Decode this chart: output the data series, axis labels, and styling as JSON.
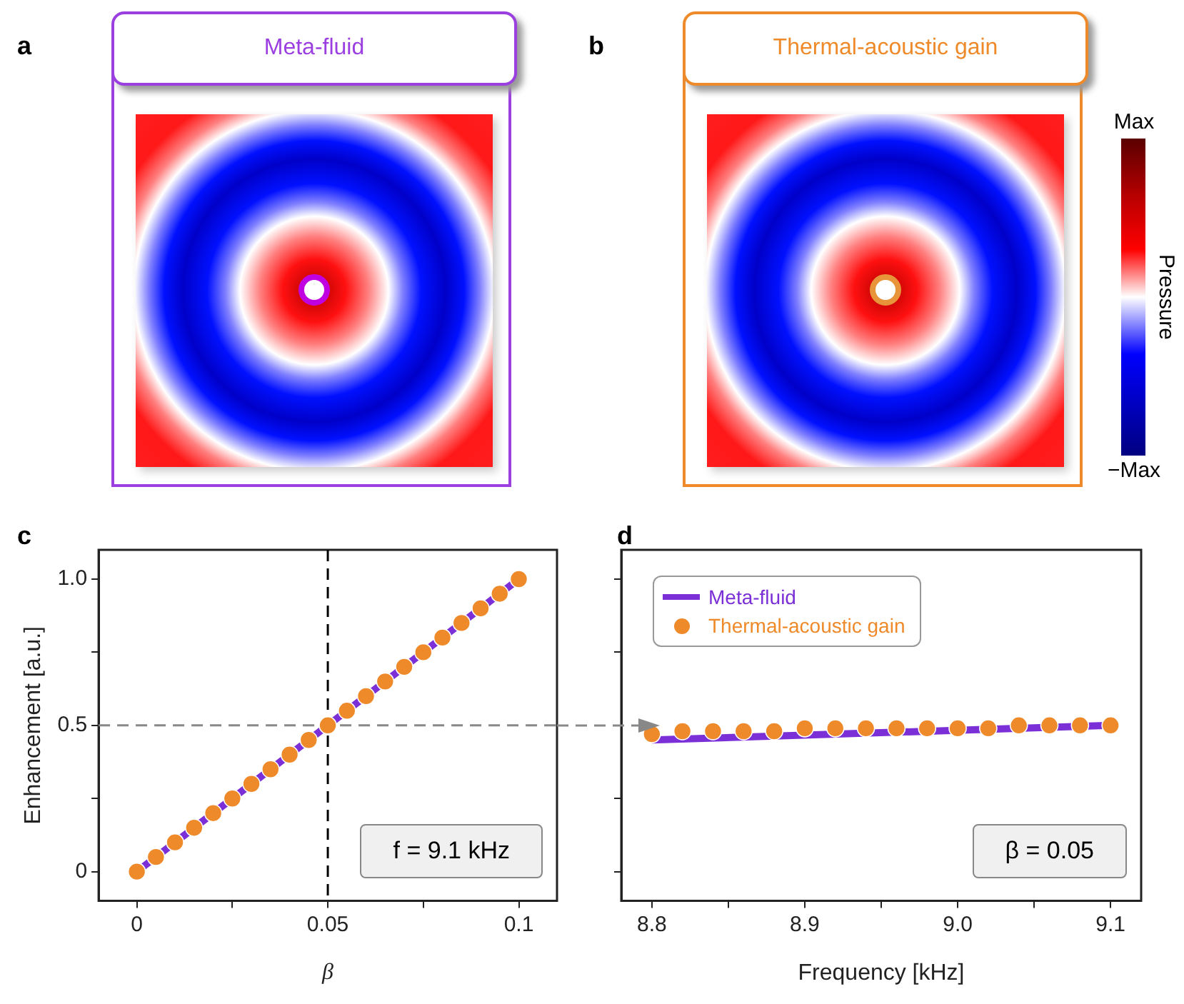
{
  "chart_data": [
    {
      "type": "other",
      "title": "Meta-fluid",
      "annotations": [
        "a"
      ]
    },
    {
      "type": "other",
      "title": "Thermal-acoustic gain",
      "annotations": [
        "b",
        "Max",
        "−Max"
      ],
      "clabel": "Pressure"
    },
    {
      "type": "line",
      "xlabel": "β",
      "ylabel": "Enhancement [a.u.]",
      "annotations": [
        "c",
        "f = 9.1 kHz"
      ],
      "xlim": [
        -0.01,
        0.11
      ],
      "xticks": [
        0,
        {
          "value": 0.025,
          "label": null
        },
        0.05,
        {
          "value": 0.075,
          "label": null
        },
        0.1
      ],
      "ylim": [
        -0.1,
        1.1
      ],
      "yticks": [
        0,
        {
          "value": 0.25,
          "label": null
        },
        0.5,
        {
          "value": 0.75,
          "label": null
        },
        {
          "value": 1,
          "label": "1.0"
        }
      ],
      "grid": false,
      "legend": false,
      "ref_lines": [
        {
          "axis": "x",
          "value": 0.05,
          "color": "#000000",
          "line_style": "dashed"
        },
        {
          "axis": "y",
          "value": 0.5,
          "color": "#888888",
          "line_style": "dashed"
        }
      ],
      "series": [
        {
          "type": "line",
          "color": "#7b2fd6",
          "marker": "none",
          "line_style": "solid",
          "x": [
            0,
            0.1
          ],
          "values": [
            0,
            1
          ]
        },
        {
          "type": "scatter",
          "color": "#ee8a2a",
          "marker": "circle",
          "x": [
            0,
            0.005,
            0.01,
            0.015,
            0.02,
            0.025,
            0.03,
            0.035,
            0.04,
            0.045,
            0.05,
            0.055,
            0.06,
            0.065,
            0.07,
            0.075,
            0.08,
            0.085,
            0.09,
            0.095,
            0.1
          ],
          "values": [
            0,
            0.05,
            0.1,
            0.15,
            0.2,
            0.25,
            0.3,
            0.35,
            0.4,
            0.45,
            0.5,
            0.55,
            0.6,
            0.65,
            0.7,
            0.75,
            0.8,
            0.85,
            0.9,
            0.95,
            1
          ]
        }
      ]
    },
    {
      "type": "line",
      "xlabel": "Frequency [kHz]",
      "annotations": [
        "d",
        "β = 0.05"
      ],
      "xlim": [
        8.78,
        9.12
      ],
      "xticks": [
        8.8,
        {
          "value": 8.85,
          "label": null
        },
        8.9,
        {
          "value": 8.95,
          "label": null
        },
        {
          "value": 9,
          "label": "9.0"
        },
        {
          "value": 9.05,
          "label": null
        },
        9.1
      ],
      "ylim": [
        -0.1,
        1.1
      ],
      "yticks": [
        {
          "value": 0,
          "label": null
        },
        {
          "value": 0.25,
          "label": null
        },
        {
          "value": 0.5,
          "label": null
        },
        {
          "value": 0.75,
          "label": null
        },
        {
          "value": 1,
          "label": null
        }
      ],
      "tick_labels": "x",
      "grid": false,
      "legend": "top left",
      "series": [
        {
          "type": "line",
          "name": "Meta-fluid",
          "color": "#7b2fd6",
          "marker": "none",
          "line_style": "solid",
          "x": [
            8.8,
            9.1
          ],
          "values": [
            0.45,
            0.5
          ]
        },
        {
          "type": "scatter",
          "name": "Thermal-acoustic gain",
          "color": "#ee8a2a",
          "marker": "circle",
          "x": [
            8.8,
            8.82,
            8.84,
            8.86,
            8.88,
            8.9,
            8.92,
            8.94,
            8.96,
            8.98,
            9,
            9.02,
            9.04,
            9.06,
            9.08,
            9.1
          ],
          "values": [
            0.47,
            0.48,
            0.48,
            0.48,
            0.48,
            0.49,
            0.49,
            0.49,
            0.49,
            0.49,
            0.49,
            0.49,
            0.5,
            0.5,
            0.5,
            0.5
          ]
        }
      ]
    }
  ]
}
